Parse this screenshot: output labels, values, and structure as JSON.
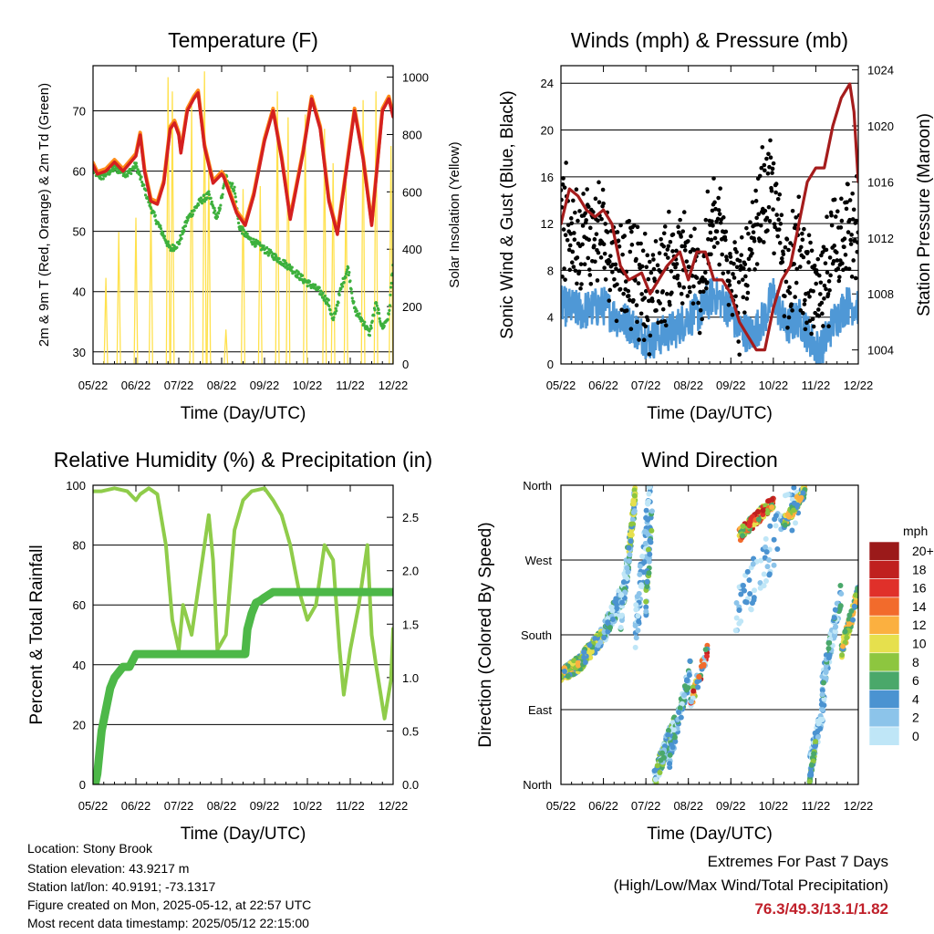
{
  "chart_data": [
    {
      "id": "temp",
      "type": "line",
      "title": "Temperature (F)",
      "xlabel": "Time (Day/UTC)",
      "ylabel_left": "2m & 9m T (Red, Orange) & 2m Td (Green)",
      "ylabel_right": "Solar Insolation (Yellow)",
      "x_ticks": [
        "05/22",
        "06/22",
        "07/22",
        "08/22",
        "09/22",
        "10/22",
        "11/22",
        "12/22"
      ],
      "ylim": [
        28,
        77.5
      ],
      "y_ticks": [
        30,
        40,
        50,
        60,
        70
      ],
      "y2lim": [
        0,
        1040
      ],
      "y2_ticks": [
        0,
        200,
        400,
        600,
        800,
        1000
      ],
      "series": [
        {
          "name": "2m T",
          "color": "#ff8c1a",
          "x": [
            0,
            0.1,
            0.3,
            0.5,
            0.7,
            1.0,
            1.1,
            1.2,
            1.35,
            1.5,
            1.65,
            1.8,
            1.9,
            2.0,
            2.05,
            2.2,
            2.35,
            2.45,
            2.6,
            2.8,
            3.0,
            3.05,
            3.15,
            3.35,
            3.55,
            3.75,
            4.0,
            4.2,
            4.4,
            4.6,
            4.9,
            5.1,
            5.3,
            5.5,
            5.7,
            5.85,
            6.1,
            6.3,
            6.5,
            6.75,
            6.9,
            7.0
          ],
          "values": [
            61,
            59.5,
            60,
            61.5,
            60,
            62.5,
            66,
            60,
            55,
            54.5,
            58,
            67,
            68,
            66,
            63,
            70,
            72,
            73,
            64,
            58,
            59.5,
            59,
            57,
            53,
            51,
            56,
            65,
            70,
            62,
            52,
            63,
            72,
            67,
            55,
            49.5,
            57,
            70,
            62,
            51,
            70,
            72,
            69
          ]
        },
        {
          "name": "2m Td",
          "color": "#3db03d",
          "x": [
            0,
            0.2,
            0.5,
            0.8,
            1.0,
            1.2,
            1.4,
            1.6,
            1.8,
            2.0,
            2.2,
            2.5,
            2.7,
            2.9,
            3.1,
            3.3,
            3.4,
            3.6,
            3.8,
            4.0,
            4.2,
            4.4,
            4.6,
            4.9,
            5.1,
            5.3,
            5.5,
            5.6,
            5.8,
            5.95,
            6.1,
            6.3,
            6.45,
            6.6,
            6.75,
            6.9,
            7.0
          ],
          "values": [
            60,
            59,
            60.5,
            59.5,
            61,
            57,
            53,
            50,
            47,
            48,
            52,
            55,
            56,
            52,
            59,
            57,
            51,
            49,
            48,
            47,
            46,
            45,
            44,
            42,
            41,
            40,
            38,
            35,
            41,
            44,
            37,
            35,
            33,
            38,
            34,
            36,
            45
          ]
        },
        {
          "name": "Solar Insolation",
          "axis": "right",
          "color": "#ffe14d",
          "peaks_x": [
            0.3,
            0.6,
            1.0,
            1.35,
            1.75,
            1.85,
            2.3,
            2.6,
            2.7,
            3.1,
            3.5,
            3.9,
            4.3,
            4.55,
            4.95,
            5.4,
            5.6,
            5.9,
            6.3,
            6.6,
            6.95
          ],
          "peaks_values": [
            300,
            460,
            510,
            560,
            1000,
            950,
            900,
            1020,
            700,
            120,
            610,
            620,
            950,
            860,
            870,
            820,
            700,
            650,
            920,
            950,
            760
          ]
        }
      ]
    },
    {
      "id": "winds",
      "type": "scatter",
      "title": "Winds (mph) & Pressure (mb)",
      "xlabel": "Time (Day/UTC)",
      "ylabel_left": "Sonic Wind & Gust (Blue, Black)",
      "ylabel_right": "Station Pressure (Maroon)",
      "x_ticks": [
        "05/22",
        "06/22",
        "07/22",
        "08/22",
        "09/22",
        "10/22",
        "11/22",
        "12/22"
      ],
      "ylim": [
        0,
        25.5
      ],
      "y_ticks": [
        0,
        4,
        8,
        12,
        16,
        20,
        24
      ],
      "y2lim": [
        1003,
        1024.3
      ],
      "y2_ticks": [
        1004,
        1008,
        1012,
        1016,
        1020,
        1024
      ],
      "series": [
        {
          "name": "Sonic Wind",
          "color": "#4f98d6",
          "x": [
            0,
            0.5,
            1.0,
            1.3,
            1.6,
            1.9,
            2.1,
            2.4,
            2.7,
            3.0,
            3.3,
            3.6,
            3.9,
            4.2,
            4.5,
            4.8,
            5.0,
            5.3,
            5.6,
            5.9,
            6.1,
            6.4,
            6.7,
            7.0
          ],
          "values": [
            5,
            4.5,
            5,
            4,
            3.5,
            2.5,
            2,
            2.5,
            3,
            4,
            4.5,
            6,
            5,
            3,
            2.5,
            4,
            6,
            3,
            4,
            2,
            1,
            3.5,
            5,
            5
          ]
        },
        {
          "name": "Gust",
          "color": "#000000",
          "x": [
            0,
            0.5,
            1.0,
            1.3,
            1.6,
            1.9,
            2.1,
            2.4,
            2.7,
            3.0,
            3.3,
            3.6,
            3.9,
            4.2,
            4.5,
            4.8,
            5.0,
            5.3,
            5.6,
            5.9,
            6.1,
            6.4,
            6.7,
            7.0
          ],
          "values": [
            12,
            11,
            11,
            9,
            8,
            7,
            6,
            8,
            9,
            8,
            7,
            12,
            10,
            6,
            9,
            15,
            14,
            8,
            10,
            6,
            5,
            10,
            12,
            11
          ]
        },
        {
          "name": "Station Pressure",
          "axis": "right",
          "color": "#a51c1c",
          "x": [
            0,
            0.2,
            0.4,
            0.6,
            0.8,
            1.0,
            1.2,
            1.4,
            1.6,
            1.9,
            2.1,
            2.3,
            2.5,
            2.8,
            3.0,
            3.2,
            3.4,
            3.6,
            3.8,
            4.0,
            4.2,
            4.4,
            4.6,
            4.8,
            5.0,
            5.2,
            5.4,
            5.6,
            5.8,
            6.0,
            6.2,
            6.4,
            6.6,
            6.8,
            6.9,
            7.0
          ],
          "values": [
            1013,
            1015.5,
            1015,
            1014,
            1013.5,
            1014,
            1013,
            1010,
            1009,
            1009.5,
            1008,
            1009,
            1010,
            1011,
            1009,
            1011,
            1011,
            1009,
            1009,
            1008,
            1006,
            1005,
            1004,
            1004,
            1007,
            1009,
            1010,
            1013,
            1016,
            1017,
            1017,
            1020,
            1022,
            1023,
            1021,
            1016
          ]
        }
      ]
    },
    {
      "id": "rh",
      "type": "line",
      "title": "Relative Humidity (%) & Precipitation (in)",
      "xlabel": "Time (Day/UTC)",
      "ylabel_left": "Percent & Total Rainfall",
      "x_ticks": [
        "05/22",
        "06/22",
        "07/22",
        "08/22",
        "09/22",
        "10/22",
        "11/22",
        "12/22"
      ],
      "ylim": [
        0,
        100
      ],
      "y_ticks": [
        0,
        20,
        40,
        60,
        80,
        100
      ],
      "y2lim": [
        0,
        2.8
      ],
      "y2_ticks": [
        "0.0",
        "0.5",
        "1.0",
        "1.5",
        "2.0",
        "2.5"
      ],
      "series": [
        {
          "name": "Relative Humidity",
          "color": "#8fcc4a",
          "x": [
            0,
            0.2,
            0.5,
            0.8,
            1.0,
            1.1,
            1.3,
            1.5,
            1.7,
            1.85,
            2.0,
            2.1,
            2.3,
            2.5,
            2.7,
            2.8,
            2.9,
            3.1,
            3.3,
            3.5,
            3.7,
            4.0,
            4.2,
            4.4,
            4.6,
            4.8,
            5.0,
            5.2,
            5.4,
            5.6,
            5.75,
            5.85,
            6.0,
            6.2,
            6.4,
            6.5,
            6.6,
            6.8,
            6.95,
            7.0
          ],
          "values": [
            98,
            98,
            99,
            98,
            95,
            97,
            99,
            97,
            80,
            55,
            45,
            60,
            50,
            70,
            90,
            75,
            45,
            50,
            85,
            95,
            98,
            99,
            95,
            90,
            80,
            65,
            55,
            60,
            80,
            75,
            45,
            30,
            45,
            60,
            80,
            50,
            40,
            22,
            35,
            52
          ]
        },
        {
          "name": "Total Precipitation",
          "axis": "right",
          "color": "#4db848",
          "x": [
            0,
            0.05,
            0.1,
            0.2,
            0.3,
            0.4,
            0.5,
            0.7,
            0.85,
            1.0,
            1.5,
            2.0,
            2.5,
            3.0,
            3.3,
            3.55,
            3.6,
            3.7,
            3.8,
            3.9,
            4.0,
            4.2,
            4.5,
            5.0,
            6.0,
            7.0
          ],
          "values": [
            0,
            0,
            0.1,
            0.5,
            0.7,
            0.9,
            1.0,
            1.1,
            1.1,
            1.22,
            1.22,
            1.22,
            1.22,
            1.22,
            1.22,
            1.22,
            1.45,
            1.6,
            1.7,
            1.72,
            1.75,
            1.8,
            1.8,
            1.8,
            1.8,
            1.8
          ]
        }
      ]
    },
    {
      "id": "wdir",
      "type": "scatter",
      "title": "Wind Direction",
      "xlabel": "Time (Day/UTC)",
      "ylabel_left": "Direction (Colored By Speed)",
      "x_ticks": [
        "05/22",
        "06/22",
        "07/22",
        "08/22",
        "09/22",
        "10/22",
        "11/22",
        "12/22"
      ],
      "y_ticks": [
        "North",
        "East",
        "South",
        "West",
        "North"
      ],
      "colorbar_unit": "mph",
      "colorbar_labels": [
        "0",
        "2",
        "4",
        "6",
        "8",
        "10",
        "12",
        "14",
        "16",
        "18",
        "20+"
      ],
      "colorbar_colors": [
        "#bfe6f7",
        "#8cc4ea",
        "#4b93d1",
        "#4aa86a",
        "#8dc63f",
        "#e6e04d",
        "#fbb040",
        "#f26b2c",
        "#e0302a",
        "#c0201f",
        "#9b1a1a"
      ]
    }
  ],
  "info": {
    "location": "Location: Stony Brook",
    "elevation": "Station elevation: 43.9217 m",
    "latlon": "Station lat/lon: 40.9191; -73.1317",
    "created": "Figure created on Mon, 2025-05-12, at 22:57 UTC",
    "recent": "Most recent data timestamp: 2025/05/12 22:15:00"
  },
  "extremes": {
    "title": "Extremes For Past 7 Days",
    "subtitle": "(High/Low/Max Wind/Total Precipitation)",
    "values": "76.3/49.3/13.1/1.82",
    "values_color": "#c0202a"
  }
}
